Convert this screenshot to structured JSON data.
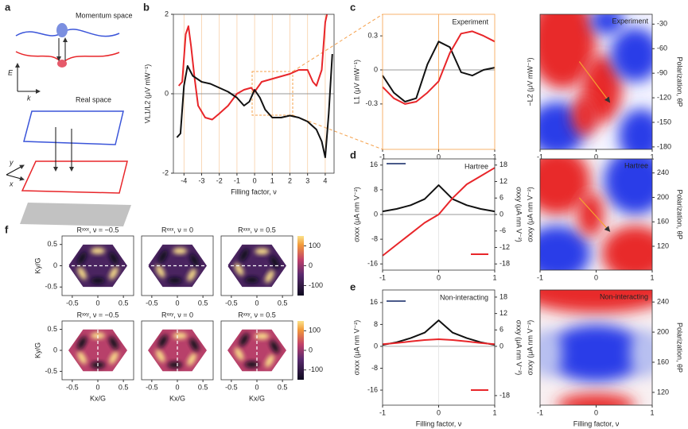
{
  "panel_labels": [
    "a",
    "b",
    "c",
    "d",
    "e",
    "f"
  ],
  "diagram": {
    "momentum": "Momentum space",
    "real": "Real space",
    "energy_axis": "E",
    "k_axis": "k",
    "y_axis": "y",
    "x_axis": "x"
  },
  "chart_data": [
    {
      "type": "line",
      "xlabel": "Filling factor, ν",
      "ylabel": "VL1/L2 (μV mW⁻¹)",
      "xlim": [
        -4.6,
        4.5
      ],
      "ylim": [
        -2,
        2
      ],
      "xticks": [
        -4,
        -3,
        -2,
        -1,
        0,
        1,
        2,
        3,
        4
      ],
      "yticks": [
        -2,
        0,
        2
      ],
      "grid": "x",
      "series": [
        {
          "color": "#e8262a",
          "x": [
            -4.3,
            -4.1,
            -3.9,
            -3.75,
            -3.6,
            -3.4,
            -3.2,
            -2.8,
            -2.4,
            -2,
            -1.5,
            -1,
            -0.6,
            -0.2,
            0,
            0.4,
            0.8,
            1.2,
            1.6,
            2,
            2.5,
            3,
            3.3,
            3.5,
            3.8,
            4,
            4.1
          ],
          "values": [
            0.2,
            0.3,
            1.5,
            1.7,
            1.2,
            0.4,
            -0.3,
            -0.6,
            -0.65,
            -0.5,
            -0.3,
            0,
            0.1,
            0.15,
            0.05,
            0.3,
            0.35,
            0.4,
            0.45,
            0.5,
            0.6,
            0.6,
            0.3,
            0.2,
            0.6,
            1.8,
            2
          ]
        },
        {
          "color": "#111111",
          "x": [
            -4.4,
            -4.2,
            -4,
            -3.8,
            -3.5,
            -3,
            -2.5,
            -2,
            -1.5,
            -1,
            -0.6,
            -0.3,
            0,
            0.3,
            0.6,
            1,
            1.5,
            2,
            2.5,
            3,
            3.5,
            3.8,
            4,
            4.2,
            4.4
          ],
          "values": [
            -1.1,
            -1,
            0.2,
            0.7,
            0.45,
            0.3,
            0.25,
            0.15,
            0.05,
            -0.1,
            -0.3,
            -0.2,
            0.1,
            -0.1,
            -0.4,
            -0.6,
            -0.6,
            -0.55,
            -0.6,
            -0.7,
            -0.9,
            -1.2,
            -1.6,
            -0.5,
            1
          ]
        }
      ]
    },
    {
      "type": "line",
      "annotation": "Experiment",
      "ylabel": "L1 (μV mW⁻¹)",
      "xlim": [
        -1,
        1
      ],
      "ylim": [
        -0.7,
        0.49
      ],
      "xticks": [
        -1,
        0,
        1
      ],
      "yticks": [
        -0.3,
        0,
        0.3
      ],
      "frame_color": "#f5a04a",
      "series": [
        {
          "color": "#111111",
          "x": [
            -1,
            -0.8,
            -0.6,
            -0.4,
            -0.2,
            0,
            0.2,
            0.4,
            0.6,
            0.8,
            1
          ],
          "values": [
            -0.05,
            -0.2,
            -0.28,
            -0.25,
            0.05,
            0.25,
            0.2,
            -0.02,
            -0.05,
            0,
            0.02
          ]
        },
        {
          "color": "#e8262a",
          "x": [
            -1,
            -0.8,
            -0.6,
            -0.4,
            -0.2,
            0,
            0.2,
            0.4,
            0.6,
            0.8,
            1
          ],
          "values": [
            -0.15,
            -0.25,
            -0.3,
            -0.28,
            -0.2,
            -0.1,
            0.15,
            0.32,
            0.34,
            0.3,
            0.25
          ]
        }
      ]
    },
    {
      "type": "heatmap",
      "annotation": "Experiment",
      "ylabel": "−L2 (μV mW⁻¹)",
      "ylabel_color": "#e8262a",
      "y2label": "Polarization, θP",
      "xlim": [
        -1,
        1
      ],
      "xticks": [
        -1,
        0,
        1
      ],
      "y2lim": [
        -183,
        -18
      ],
      "y2ticks": [
        -30,
        -60,
        -90,
        -120,
        -150,
        -180
      ]
    },
    {
      "type": "line",
      "annotation": "Hartree",
      "ylabel": "σxxx (μA nm V⁻²)",
      "y2label": "σxxy (μA nm V⁻²)",
      "y2label_color": "#e8262a",
      "xlim": [
        -1,
        1
      ],
      "xticks": [
        -1,
        0,
        1
      ],
      "ylim": [
        -18,
        18
      ],
      "yticks": [
        16,
        8,
        0,
        -8,
        -16
      ],
      "y2lim": [
        -20.25,
        20.25
      ],
      "y2ticks": [
        18,
        12,
        6,
        0,
        -6,
        -12,
        -18
      ],
      "series": [
        {
          "color": "#111111",
          "x": [
            -1,
            -0.75,
            -0.5,
            -0.25,
            0,
            0.25,
            0.5,
            0.75,
            1
          ],
          "values": [
            1,
            1.8,
            3,
            5,
            9.5,
            5,
            3,
            1.8,
            1
          ]
        },
        {
          "color": "#e8262a",
          "axis": "y2",
          "x": [
            -1,
            -0.75,
            -0.5,
            -0.25,
            0,
            0.25,
            0.5,
            0.75,
            1
          ],
          "values": [
            -15,
            -11,
            -7,
            -3,
            0,
            6,
            11,
            14,
            17
          ]
        }
      ]
    },
    {
      "type": "heatmap",
      "annotation": "Hartree",
      "ylabel": "σxxy (μA nm V⁻²)",
      "ylabel_color": "#e8262a",
      "y2label": "Polarization, θP",
      "xlim": [
        -1,
        1
      ],
      "xticks": [
        -1,
        0,
        1
      ],
      "y2lim": [
        81,
        263
      ],
      "y2ticks": [
        240,
        200,
        160,
        120
      ]
    },
    {
      "type": "line",
      "annotation": "Non-interacting",
      "xlabel": "Filling factor, ν",
      "ylabel": "σxxx (μA nm V⁻²)",
      "y2label": "σxxy (μA nm V⁻²)",
      "y2label_color": "#e8262a",
      "xlim": [
        -1,
        1
      ],
      "xticks": [
        -1,
        0,
        1
      ],
      "ylim": [
        -21.5,
        20.6
      ],
      "yticks": [
        16,
        8,
        0,
        -8,
        -16
      ],
      "y2lim": [
        -21.5,
        20.6
      ],
      "y2ticks": [
        18,
        12,
        6,
        0,
        -18
      ],
      "series": [
        {
          "color": "#111111",
          "x": [
            -1,
            -0.75,
            -0.5,
            -0.25,
            0,
            0.25,
            0.5,
            0.75,
            1
          ],
          "values": [
            0.5,
            1.5,
            3,
            5,
            9.5,
            5,
            3,
            1.5,
            0.5
          ]
        },
        {
          "color": "#e8262a",
          "axis": "y2",
          "x": [
            -1,
            -0.75,
            -0.5,
            -0.25,
            0,
            0.25,
            0.5,
            0.75,
            1
          ],
          "values": [
            0.8,
            1.2,
            1.8,
            2.3,
            2.6,
            2.3,
            1.8,
            1.2,
            0.8
          ]
        }
      ]
    },
    {
      "type": "heatmap",
      "annotation": "Non-interacting",
      "xlabel": "Filling factor, ν",
      "ylabel": "σxxy (μA nm V⁻²)",
      "ylabel_color": "#e8262a",
      "y2label": "Polarization, θP",
      "xlim": [
        -1,
        1
      ],
      "xticks": [
        -1,
        0,
        1
      ],
      "y2lim": [
        103,
        256
      ],
      "y2ticks": [
        240,
        200,
        160,
        120
      ]
    },
    {
      "type": "maps",
      "xlabel": "Kx/G",
      "ylabel": "Ky/G",
      "xlim": [
        -0.7,
        0.7
      ],
      "ylim": [
        -0.7,
        0.7
      ],
      "xticks": [
        -0.5,
        0,
        0.5
      ],
      "yticks": [
        0.5,
        0,
        -0.5
      ],
      "clim": [
        -150,
        150
      ],
      "cticks": [
        100,
        0,
        -100
      ],
      "maps": [
        {
          "title": "Rˣˣˣ, ν = −0.5"
        },
        {
          "title": "Rˣˣˣ, ν = 0"
        },
        {
          "title": "Rˣˣˣ, ν = 0.5"
        },
        {
          "title": "Rˣˣʸ, ν = −0.5"
        },
        {
          "title": "Rˣˣʸ, ν = 0"
        },
        {
          "title": "Rˣˣʸ, ν = 0.5"
        }
      ]
    }
  ]
}
